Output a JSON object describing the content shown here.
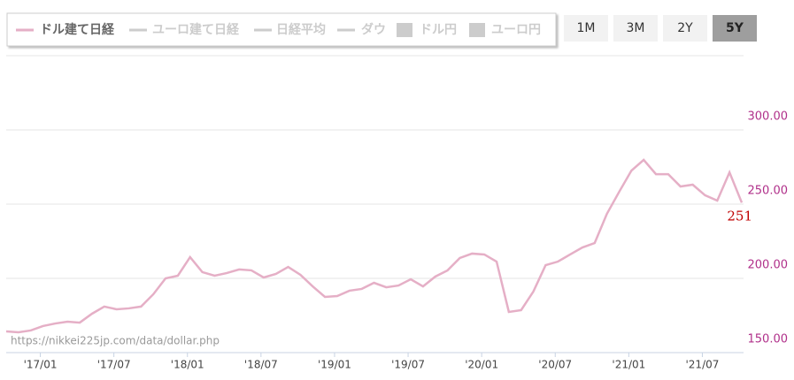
{
  "chart_data": {
    "type": "line",
    "categories": [
      null,
      null,
      null,
      "'17/01",
      null,
      null,
      null,
      null,
      null,
      "'17/07",
      null,
      null,
      null,
      null,
      null,
      "'18/01",
      null,
      null,
      null,
      null,
      null,
      "'18/07",
      null,
      null,
      null,
      null,
      null,
      "'19/01",
      null,
      null,
      null,
      null,
      null,
      "'19/07",
      null,
      null,
      null,
      null,
      null,
      "'20/01",
      null,
      null,
      null,
      null,
      null,
      "'20/07",
      null,
      null,
      null,
      null,
      null,
      "'21/01",
      null,
      null,
      null,
      null,
      null,
      "'21/07",
      null,
      null,
      null
    ],
    "series": [
      {
        "name": "ドル建て日経",
        "color": "#e5afc6",
        "values": [
          164.3,
          163.7,
          164.9,
          167.9,
          169.6,
          170.8,
          170.2,
          176.2,
          181.0,
          179.2,
          179.8,
          181.0,
          189.3,
          200.0,
          201.8,
          214.3,
          204.2,
          201.8,
          203.6,
          206.0,
          205.4,
          200.6,
          203.0,
          207.7,
          202.4,
          194.6,
          187.5,
          188.1,
          191.7,
          192.9,
          197.0,
          194.0,
          195.2,
          199.4,
          194.6,
          201.2,
          205.4,
          213.7,
          216.7,
          216.1,
          211.3,
          177.4,
          178.6,
          191.1,
          208.9,
          211.3,
          216.1,
          220.8,
          223.8,
          243.5,
          258.3,
          272.6,
          279.8,
          270.2,
          270.2,
          261.9,
          263.1,
          256.0,
          252.4,
          271.4,
          251
        ],
        "value_labels": [
          null,
          null,
          null,
          null,
          null,
          null,
          null,
          null,
          null,
          null,
          null,
          null,
          null,
          null,
          null,
          null,
          null,
          null,
          null,
          null,
          null,
          null,
          null,
          null,
          null,
          null,
          null,
          null,
          null,
          null,
          null,
          null,
          null,
          null,
          null,
          null,
          null,
          null,
          null,
          null,
          null,
          null,
          null,
          null,
          null,
          null,
          null,
          null,
          null,
          null,
          null,
          null,
          null,
          null,
          null,
          null,
          null,
          null,
          null,
          null,
          "251"
        ]
      }
    ],
    "legend_inactive": [
      {
        "name": "ユーロ建て日経",
        "marker": "line"
      },
      {
        "name": "日経平均",
        "marker": "line"
      },
      {
        "name": "ダウ",
        "marker": "line"
      },
      {
        "name": "ドル円",
        "marker": "box"
      },
      {
        "name": "ユーロ円",
        "marker": "box"
      }
    ],
    "range_buttons": [
      "1M",
      "3M",
      "2Y",
      "5Y"
    ],
    "selected_range": "5Y",
    "ylim": [
      150,
      350
    ],
    "yticks": [
      {
        "value": 150,
        "label": "150.00"
      },
      {
        "value": 200,
        "label": "200.00"
      },
      {
        "value": 250,
        "label": "250.00"
      },
      {
        "value": 300,
        "label": "300.00"
      }
    ],
    "grid": true,
    "source": "https://nikkei225jp.com/data/dollar.php"
  }
}
